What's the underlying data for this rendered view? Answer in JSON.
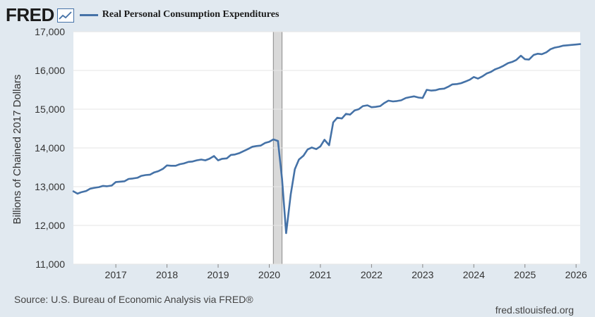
{
  "logo": {
    "text": "FRED"
  },
  "legend": {
    "label": "Real Personal Consumption Expenditures",
    "color": "#4572a7"
  },
  "footer": {
    "source": "Source: U.S. Bureau of Economic Analysis via FRED®",
    "site": "fred.stlouisfed.org"
  },
  "chart_data": {
    "type": "line",
    "title": "Real Personal Consumption Expenditures",
    "ylabel": "Billions of Chained 2017 Dollars",
    "xlabel": "",
    "ylim": [
      11000,
      17000
    ],
    "xlim": [
      2016.17,
      2026.08
    ],
    "y_ticks": [
      11000,
      12000,
      13000,
      14000,
      15000,
      16000,
      17000
    ],
    "y_tick_labels": [
      "11,000",
      "12,000",
      "13,000",
      "14,000",
      "15,000",
      "16,000",
      "17,000"
    ],
    "x_ticks": [
      2017,
      2018,
      2019,
      2020,
      2021,
      2022,
      2023,
      2024,
      2025,
      2026
    ],
    "x_tick_labels": [
      "2017",
      "2018",
      "2019",
      "2020",
      "2021",
      "2022",
      "2023",
      "2024",
      "2025",
      "2026"
    ],
    "grid": true,
    "line_color": "#4572a7",
    "recession": {
      "start": 2020.08,
      "end": 2020.25,
      "color": "#d9d9d9"
    },
    "series": [
      {
        "name": "Real Personal Consumption Expenditures",
        "x": [
          2016.17,
          2016.25,
          2016.33,
          2016.42,
          2016.5,
          2016.58,
          2016.67,
          2016.75,
          2016.83,
          2016.92,
          2017.0,
          2017.08,
          2017.17,
          2017.25,
          2017.33,
          2017.42,
          2017.5,
          2017.58,
          2017.67,
          2017.75,
          2017.83,
          2017.92,
          2018.0,
          2018.08,
          2018.17,
          2018.25,
          2018.33,
          2018.42,
          2018.5,
          2018.58,
          2018.67,
          2018.75,
          2018.83,
          2018.92,
          2019.0,
          2019.08,
          2019.17,
          2019.25,
          2019.33,
          2019.42,
          2019.5,
          2019.58,
          2019.67,
          2019.75,
          2019.83,
          2019.92,
          2020.0,
          2020.08,
          2020.17,
          2020.25,
          2020.33,
          2020.42,
          2020.5,
          2020.58,
          2020.67,
          2020.75,
          2020.83,
          2020.92,
          2021.0,
          2021.08,
          2021.17,
          2021.25,
          2021.33,
          2021.42,
          2021.5,
          2021.58,
          2021.67,
          2021.75,
          2021.83,
          2021.92,
          2022.0,
          2022.08,
          2022.17,
          2022.25,
          2022.33,
          2022.42,
          2022.5,
          2022.58,
          2022.67,
          2022.75,
          2022.83,
          2022.92,
          2023.0,
          2023.08,
          2023.17,
          2023.25,
          2023.33,
          2023.42,
          2023.5,
          2023.58,
          2023.67,
          2023.75,
          2023.83,
          2023.92,
          2024.0,
          2024.08,
          2024.17,
          2024.25,
          2024.33,
          2024.42,
          2024.5,
          2024.58,
          2024.67,
          2024.75,
          2024.83,
          2024.92,
          2025.0,
          2025.08,
          2025.17,
          2025.25,
          2025.33,
          2025.42,
          2025.5,
          2025.58,
          2025.67,
          2025.75,
          2025.83,
          2025.92,
          2026.0,
          2026.08
        ],
        "values": [
          12880,
          12820,
          12860,
          12890,
          12950,
          12970,
          12990,
          13020,
          13010,
          13030,
          13120,
          13130,
          13140,
          13200,
          13210,
          13230,
          13280,
          13300,
          13310,
          13370,
          13400,
          13460,
          13550,
          13540,
          13540,
          13580,
          13600,
          13640,
          13650,
          13680,
          13700,
          13680,
          13720,
          13790,
          13680,
          13720,
          13730,
          13820,
          13830,
          13870,
          13920,
          13970,
          14030,
          14050,
          14060,
          14130,
          14160,
          14220,
          14180,
          13200,
          11800,
          12800,
          13450,
          13700,
          13800,
          13960,
          14010,
          13970,
          14040,
          14210,
          14070,
          14660,
          14780,
          14760,
          14880,
          14860,
          14970,
          15000,
          15080,
          15100,
          15050,
          15060,
          15080,
          15160,
          15220,
          15200,
          15210,
          15230,
          15290,
          15310,
          15330,
          15300,
          15290,
          15500,
          15480,
          15490,
          15520,
          15530,
          15580,
          15640,
          15650,
          15670,
          15710,
          15760,
          15830,
          15790,
          15850,
          15920,
          15960,
          16030,
          16070,
          16120,
          16190,
          16220,
          16270,
          16380,
          16290,
          16280,
          16400,
          16430,
          16420,
          16470,
          16550,
          16590,
          16610,
          16640,
          16650,
          16660,
          16670,
          16680
        ]
      }
    ]
  }
}
